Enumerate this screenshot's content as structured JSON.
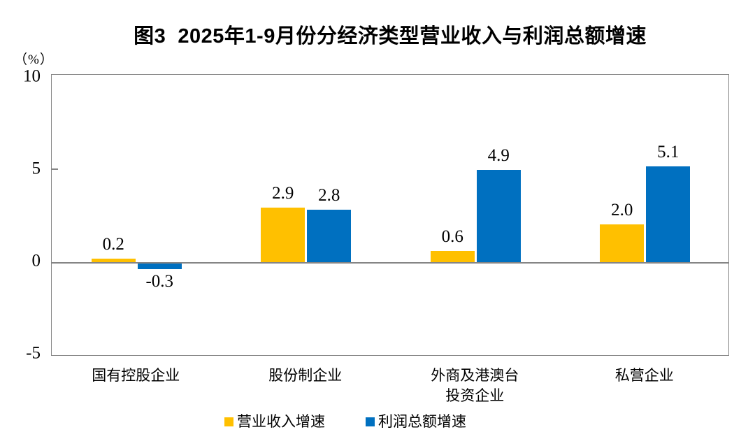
{
  "title": "图3  2025年1-9月份分经济类型营业收入与利润总额增速",
  "unit_label": "（%）",
  "chart_data": {
    "type": "bar",
    "categories": [
      [
        "国有控股企业"
      ],
      [
        "股份制企业"
      ],
      [
        "外商及港澳台",
        "投资企业"
      ],
      [
        "私营企业"
      ]
    ],
    "series": [
      {
        "name": "营业收入增速",
        "color": "#FFC000",
        "values": [
          0.2,
          2.9,
          0.6,
          2.0
        ],
        "labels": [
          "0.2",
          "2.9",
          "0.6",
          "2.0"
        ]
      },
      {
        "name": "利润总额增速",
        "color": "#0070C0",
        "values": [
          -0.3,
          2.8,
          4.9,
          5.1
        ],
        "labels": [
          "-0.3",
          "2.8",
          "4.9",
          "5.1"
        ]
      }
    ],
    "ylabel": "（%）",
    "ylim": [
      -5,
      10
    ],
    "yticks": [
      "10",
      "5",
      "0",
      "-5"
    ],
    "ytick_values": [
      10,
      5,
      0,
      -5
    ],
    "grid": false,
    "legend_position": "bottom",
    "frame_color": "#858585"
  }
}
